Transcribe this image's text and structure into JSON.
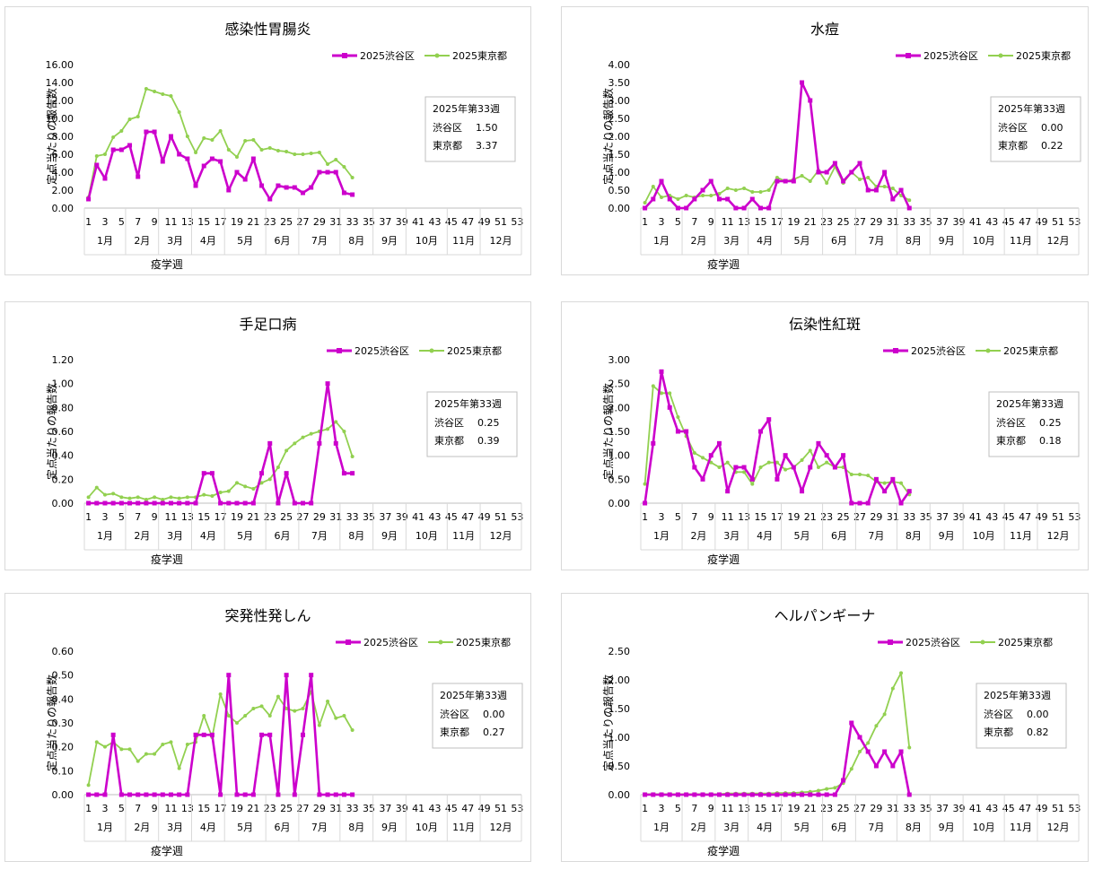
{
  "colors": {
    "shibuya": "#cc00cc",
    "tokyo": "#92d050",
    "grid": "#d9d9d9"
  },
  "chart_data": [
    {
      "type": "line",
      "title": "感染性胃腸炎",
      "ylabel": "定点当たりの報告数",
      "xlabel": "疫学週",
      "y_ticks": [
        "0.00",
        "2.00",
        "4.00",
        "6.00",
        "8.00",
        "10.00",
        "12.00",
        "14.00",
        "16.00"
      ],
      "ylim": [
        0,
        16
      ],
      "x_ticks": [
        "1",
        "3",
        "5",
        "7",
        "9",
        "11",
        "13",
        "15",
        "17",
        "19",
        "21",
        "23",
        "25",
        "27",
        "29",
        "31",
        "33",
        "35",
        "37",
        "39",
        "41",
        "43",
        "45",
        "47",
        "49",
        "51",
        "53"
      ],
      "months": [
        "1月",
        "2月",
        "3月",
        "4月",
        "5月",
        "6月",
        "7月",
        "8月",
        "9月",
        "10月",
        "11月",
        "12月"
      ],
      "series": [
        {
          "name": "2025渋谷区",
          "values": [
            1.0,
            4.8,
            3.3,
            6.5,
            6.5,
            7.0,
            3.5,
            8.5,
            8.5,
            5.2,
            8.0,
            6.0,
            5.5,
            2.5,
            4.7,
            5.5,
            5.2,
            2.0,
            4.0,
            3.2,
            5.5,
            2.5,
            1.0,
            2.5,
            2.3,
            2.3,
            1.7,
            2.3,
            4.0,
            4.0,
            4.0,
            1.7,
            1.5
          ]
        },
        {
          "name": "2025東京都",
          "values": [
            1.2,
            5.8,
            6.0,
            7.9,
            8.6,
            9.9,
            10.2,
            13.3,
            13.0,
            12.7,
            12.5,
            10.7,
            8.0,
            6.2,
            7.8,
            7.6,
            8.6,
            6.5,
            5.7,
            7.5,
            7.6,
            6.5,
            6.7,
            6.4,
            6.3,
            6.0,
            6.0,
            6.1,
            6.2,
            4.9,
            5.4,
            4.6,
            3.4
          ]
        }
      ],
      "info": {
        "week": "2025年第33週",
        "rows": [
          {
            "label": "渋谷区",
            "value": "1.50"
          },
          {
            "label": "東京都",
            "value": "3.37"
          }
        ]
      }
    },
    {
      "type": "line",
      "title": "水痘",
      "ylabel": "定点当たりの報告数",
      "xlabel": "疫学週",
      "y_ticks": [
        "0.00",
        "0.50",
        "1.00",
        "1.50",
        "2.00",
        "2.50",
        "3.00",
        "3.50",
        "4.00"
      ],
      "ylim": [
        0,
        4
      ],
      "x_ticks": [
        "1",
        "3",
        "5",
        "7",
        "9",
        "11",
        "13",
        "15",
        "17",
        "19",
        "21",
        "23",
        "25",
        "27",
        "29",
        "31",
        "33",
        "35",
        "37",
        "39",
        "41",
        "43",
        "45",
        "47",
        "49",
        "51",
        "53"
      ],
      "months": [
        "1月",
        "2月",
        "3月",
        "4月",
        "5月",
        "6月",
        "7月",
        "8月",
        "9月",
        "10月",
        "11月",
        "12月"
      ],
      "series": [
        {
          "name": "2025渋谷区",
          "values": [
            0.0,
            0.25,
            0.75,
            0.25,
            0.0,
            0.0,
            0.25,
            0.5,
            0.75,
            0.25,
            0.25,
            0.0,
            0.0,
            0.25,
            0.0,
            0.0,
            0.75,
            0.75,
            0.75,
            3.5,
            3.0,
            1.0,
            1.0,
            1.25,
            0.75,
            1.0,
            1.25,
            0.5,
            0.5,
            1.0,
            0.25,
            0.5,
            0.0
          ]
        },
        {
          "name": "2025東京都",
          "values": [
            0.15,
            0.6,
            0.3,
            0.35,
            0.25,
            0.35,
            0.3,
            0.35,
            0.35,
            0.4,
            0.55,
            0.5,
            0.55,
            0.45,
            0.45,
            0.5,
            0.85,
            0.75,
            0.8,
            0.9,
            0.75,
            1.05,
            0.7,
            1.15,
            0.7,
            1.0,
            0.8,
            0.85,
            0.6,
            0.6,
            0.55,
            0.35,
            0.22
          ]
        }
      ],
      "info": {
        "week": "2025年第33週",
        "rows": [
          {
            "label": "渋谷区",
            "value": "0.00"
          },
          {
            "label": "東京都",
            "value": "0.22"
          }
        ]
      }
    },
    {
      "type": "line",
      "title": "手足口病",
      "ylabel": "定点当たりの報告数",
      "xlabel": "疫学週",
      "y_ticks": [
        "0.00",
        "0.20",
        "0.40",
        "0.60",
        "0.80",
        "1.00",
        "1.20"
      ],
      "ylim": [
        0,
        1.2
      ],
      "x_ticks": [
        "1",
        "3",
        "5",
        "7",
        "9",
        "11",
        "13",
        "15",
        "17",
        "19",
        "21",
        "23",
        "25",
        "27",
        "29",
        "31",
        "33",
        "35",
        "37",
        "39",
        "41",
        "43",
        "45",
        "47",
        "49",
        "51",
        "53"
      ],
      "months": [
        "1月",
        "2月",
        "3月",
        "4月",
        "5月",
        "6月",
        "7月",
        "8月",
        "9月",
        "10月",
        "11月",
        "12月"
      ],
      "series": [
        {
          "name": "2025渋谷区",
          "values": [
            0,
            0,
            0,
            0,
            0,
            0,
            0,
            0,
            0,
            0,
            0,
            0,
            0,
            0,
            0.25,
            0.25,
            0,
            0,
            0,
            0,
            0,
            0.25,
            0.5,
            0,
            0.25,
            0,
            0,
            0,
            0.5,
            1.0,
            0.5,
            0.25,
            0.25
          ]
        },
        {
          "name": "2025東京都",
          "values": [
            0.05,
            0.13,
            0.07,
            0.08,
            0.05,
            0.04,
            0.05,
            0.03,
            0.05,
            0.03,
            0.05,
            0.04,
            0.05,
            0.05,
            0.07,
            0.06,
            0.09,
            0.1,
            0.17,
            0.14,
            0.12,
            0.17,
            0.2,
            0.3,
            0.44,
            0.5,
            0.55,
            0.58,
            0.6,
            0.62,
            0.68,
            0.6,
            0.39
          ]
        }
      ],
      "info": {
        "week": "2025年第33週",
        "rows": [
          {
            "label": "渋谷区",
            "value": "0.25"
          },
          {
            "label": "東京都",
            "value": "0.39"
          }
        ]
      }
    },
    {
      "type": "line",
      "title": "伝染性紅斑",
      "ylabel": "定点当たりの報告数",
      "xlabel": "疫学週",
      "y_ticks": [
        "0.00",
        "0.50",
        "1.00",
        "1.50",
        "2.00",
        "2.50",
        "3.00"
      ],
      "ylim": [
        0,
        3
      ],
      "x_ticks": [
        "1",
        "3",
        "5",
        "7",
        "9",
        "11",
        "13",
        "15",
        "17",
        "19",
        "21",
        "23",
        "25",
        "27",
        "29",
        "31",
        "33",
        "35",
        "37",
        "39",
        "41",
        "43",
        "45",
        "47",
        "49",
        "51",
        "53"
      ],
      "months": [
        "1月",
        "2月",
        "3月",
        "4月",
        "5月",
        "6月",
        "7月",
        "8月",
        "9月",
        "10月",
        "11月",
        "12月"
      ],
      "series": [
        {
          "name": "2025渋谷区",
          "values": [
            0,
            1.25,
            2.75,
            2.0,
            1.5,
            1.5,
            0.75,
            0.5,
            1.0,
            1.25,
            0.25,
            0.75,
            0.75,
            0.5,
            1.5,
            1.75,
            0.5,
            1.0,
            0.75,
            0.25,
            0.75,
            1.25,
            1.0,
            0.75,
            1.0,
            0,
            0,
            0,
            0.5,
            0.25,
            0.5,
            0,
            0.25
          ]
        },
        {
          "name": "2025東京都",
          "values": [
            0.4,
            2.45,
            2.3,
            2.3,
            1.8,
            1.4,
            1.05,
            0.95,
            0.85,
            0.75,
            0.85,
            0.65,
            0.65,
            0.4,
            0.75,
            0.85,
            0.85,
            0.7,
            0.75,
            0.9,
            1.1,
            0.75,
            0.85,
            0.75,
            0.75,
            0.6,
            0.6,
            0.58,
            0.45,
            0.42,
            0.45,
            0.42,
            0.18
          ]
        }
      ],
      "info": {
        "week": "2025年第33週",
        "rows": [
          {
            "label": "渋谷区",
            "value": "0.25"
          },
          {
            "label": "東京都",
            "value": "0.18"
          }
        ]
      }
    },
    {
      "type": "line",
      "title": "突発性発しん",
      "ylabel": "定点当たりの報告数",
      "xlabel": "疫学週",
      "y_ticks": [
        "0.00",
        "0.10",
        "0.20",
        "0.30",
        "0.40",
        "0.50",
        "0.60"
      ],
      "ylim": [
        0,
        0.6
      ],
      "x_ticks": [
        "1",
        "3",
        "5",
        "7",
        "9",
        "11",
        "13",
        "15",
        "17",
        "19",
        "21",
        "23",
        "25",
        "27",
        "29",
        "31",
        "33",
        "35",
        "37",
        "39",
        "41",
        "43",
        "45",
        "47",
        "49",
        "51",
        "53"
      ],
      "months": [
        "1月",
        "2月",
        "3月",
        "4月",
        "5月",
        "6月",
        "7月",
        "8月",
        "9月",
        "10月",
        "11月",
        "12月"
      ],
      "series": [
        {
          "name": "2025渋谷区",
          "values": [
            0,
            0,
            0,
            0.25,
            0,
            0,
            0,
            0,
            0,
            0,
            0,
            0,
            0,
            0.25,
            0.25,
            0.25,
            0,
            0.5,
            0,
            0,
            0,
            0.25,
            0.25,
            0,
            0.5,
            0,
            0.25,
            0.5,
            0,
            0,
            0,
            0,
            0
          ]
        },
        {
          "name": "2025東京都",
          "values": [
            0.04,
            0.22,
            0.2,
            0.22,
            0.19,
            0.19,
            0.14,
            0.17,
            0.17,
            0.21,
            0.22,
            0.11,
            0.21,
            0.22,
            0.33,
            0.24,
            0.42,
            0.33,
            0.3,
            0.33,
            0.36,
            0.37,
            0.33,
            0.41,
            0.36,
            0.35,
            0.36,
            0.43,
            0.29,
            0.39,
            0.32,
            0.33,
            0.27
          ]
        }
      ],
      "info": {
        "week": "2025年第33週",
        "rows": [
          {
            "label": "渋谷区",
            "value": "0.00"
          },
          {
            "label": "東京都",
            "value": "0.27"
          }
        ]
      }
    },
    {
      "type": "line",
      "title": "ヘルパンギーナ",
      "ylabel": "定点当たりの報告数",
      "xlabel": "疫学週",
      "y_ticks": [
        "0.00",
        "0.50",
        "1.00",
        "1.50",
        "2.00",
        "2.50"
      ],
      "ylim": [
        0,
        2.5
      ],
      "x_ticks": [
        "1",
        "3",
        "5",
        "7",
        "9",
        "11",
        "13",
        "15",
        "17",
        "19",
        "21",
        "23",
        "25",
        "27",
        "29",
        "31",
        "33",
        "35",
        "37",
        "39",
        "41",
        "43",
        "45",
        "47",
        "49",
        "51",
        "53"
      ],
      "months": [
        "1月",
        "2月",
        "3月",
        "4月",
        "5月",
        "6月",
        "7月",
        "8月",
        "9月",
        "10月",
        "11月",
        "12月"
      ],
      "series": [
        {
          "name": "2025渋谷区",
          "values": [
            0,
            0,
            0,
            0,
            0,
            0,
            0,
            0,
            0,
            0,
            0,
            0,
            0,
            0,
            0,
            0,
            0,
            0,
            0,
            0,
            0,
            0,
            0,
            0,
            0.25,
            1.25,
            1.0,
            0.75,
            0.5,
            0.75,
            0.5,
            0.75,
            0
          ]
        },
        {
          "name": "2025東京都",
          "values": [
            0.01,
            0.01,
            0.01,
            0.01,
            0.01,
            0.01,
            0.01,
            0.01,
            0.01,
            0.01,
            0.02,
            0.02,
            0.02,
            0.02,
            0.02,
            0.02,
            0.03,
            0.03,
            0.03,
            0.04,
            0.05,
            0.07,
            0.1,
            0.12,
            0.2,
            0.45,
            0.75,
            0.9,
            1.2,
            1.4,
            1.85,
            2.12,
            0.82
          ]
        }
      ],
      "info": {
        "week": "2025年第33週",
        "rows": [
          {
            "label": "渋谷区",
            "value": "0.00"
          },
          {
            "label": "東京都",
            "value": "0.82"
          }
        ]
      }
    }
  ]
}
